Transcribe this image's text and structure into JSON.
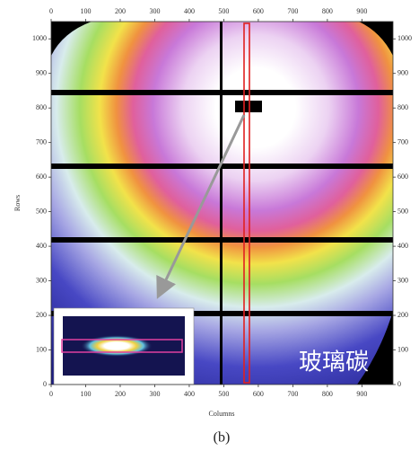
{
  "chart_data": {
    "type": "image",
    "xlabel": "Columns",
    "ylabel": "Rows",
    "xlim": [
      0,
      990
    ],
    "ylim": [
      0,
      1050
    ],
    "xticks": [
      0,
      100,
      200,
      300,
      400,
      500,
      600,
      700,
      800,
      900
    ],
    "yticks": [
      0,
      100,
      200,
      300,
      400,
      500,
      600,
      700,
      800,
      900,
      1000
    ],
    "annotation": "玻璃碳",
    "caption": "(b)"
  }
}
